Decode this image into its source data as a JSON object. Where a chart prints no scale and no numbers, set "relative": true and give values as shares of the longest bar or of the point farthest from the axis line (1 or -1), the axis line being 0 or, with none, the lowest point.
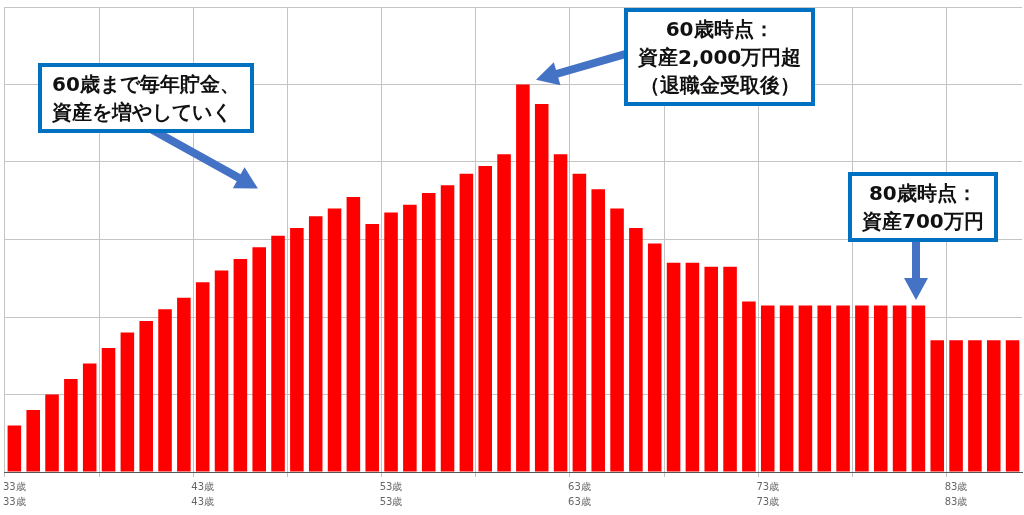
{
  "chart_data": {
    "type": "bar",
    "relative": true,
    "color": "#ff0000",
    "grid": true,
    "categories": [
      "33歳\n33歳",
      null,
      null,
      null,
      null,
      null,
      null,
      null,
      null,
      null,
      "43歳\n43歳",
      null,
      null,
      null,
      null,
      null,
      null,
      null,
      null,
      null,
      "53歳\n53歳",
      null,
      null,
      null,
      null,
      null,
      null,
      null,
      null,
      null,
      "63歳\n63歳",
      null,
      null,
      null,
      null,
      null,
      null,
      null,
      null,
      null,
      "73歳\n73歳",
      null,
      null,
      null,
      null,
      null,
      null,
      null,
      null,
      null,
      "83歳\n83歳",
      null,
      null,
      null
    ],
    "values": [
      0.12,
      0.16,
      0.2,
      0.24,
      0.28,
      0.32,
      0.36,
      0.39,
      0.42,
      0.45,
      0.49,
      0.52,
      0.55,
      0.58,
      0.61,
      0.63,
      0.66,
      0.68,
      0.71,
      0.64,
      0.67,
      0.69,
      0.72,
      0.74,
      0.77,
      0.79,
      0.82,
      1,
      0.95,
      0.82,
      0.77,
      0.73,
      0.68,
      0.63,
      0.59,
      0.54,
      0.54,
      0.53,
      0.53,
      0.44,
      0.43,
      0.43,
      0.43,
      0.43,
      0.43,
      0.43,
      0.43,
      0.43,
      0.43,
      0.34,
      0.34,
      0.34,
      0.34,
      0.34
    ],
    "annotations": [
      "60歳まで毎年貯金、資産を増やしていく",
      "60歳時点：資産2,000万円超（退職金受取後）",
      "80歳時点：資産700万円"
    ]
  }
}
